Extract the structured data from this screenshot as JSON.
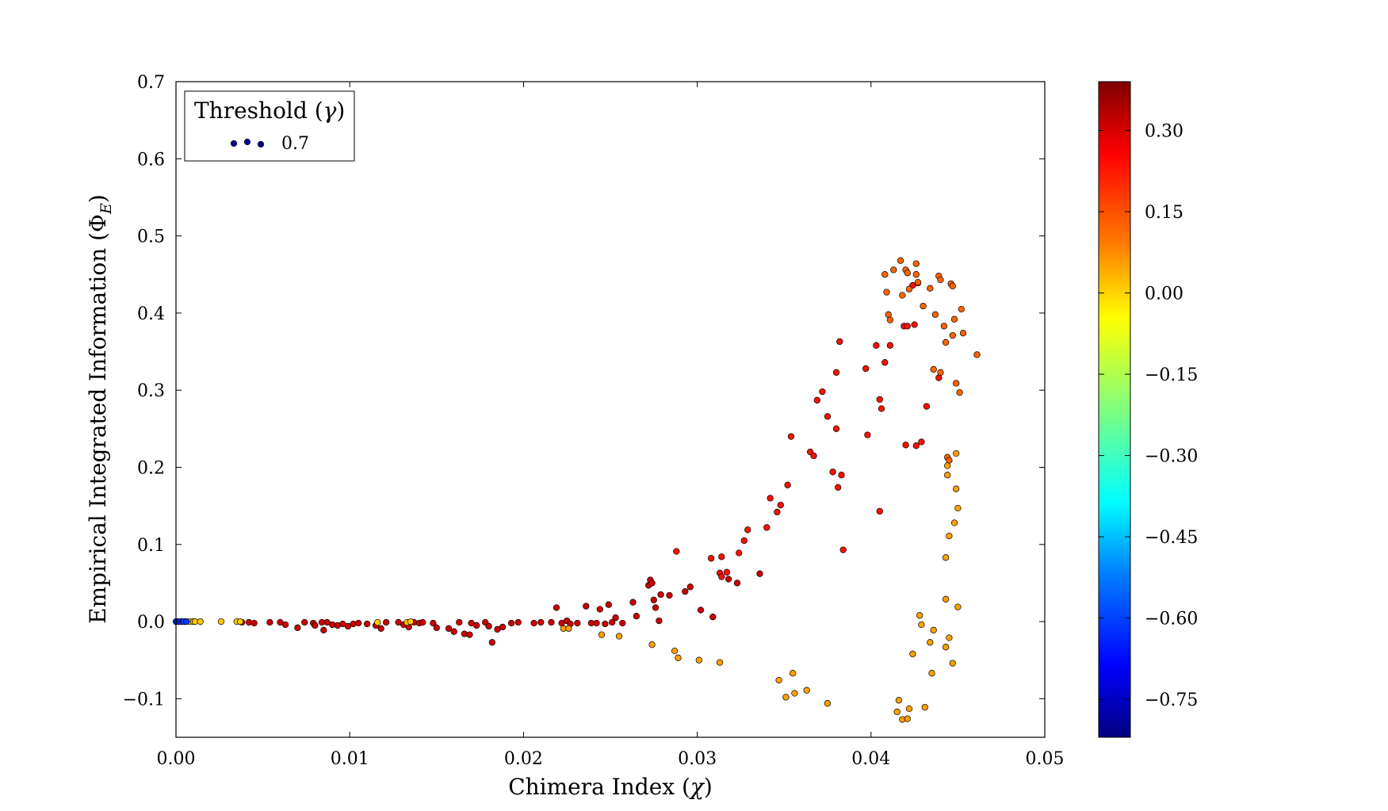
{
  "chart_data": {
    "type": "scatter",
    "title": "",
    "xlabel": "Chimera Index (χ)",
    "ylabel": "Empirical Integrated Information (Φ_E)",
    "xlim": [
      0.0,
      0.05
    ],
    "ylim": [
      -0.15,
      0.7
    ],
    "x_ticks": [
      "0.00",
      "0.01",
      "0.02",
      "0.03",
      "0.04",
      "0.05"
    ],
    "x_tick_values": [
      0.0,
      0.01,
      0.02,
      0.03,
      0.04,
      0.05
    ],
    "y_ticks": [
      "−0.1",
      "0.0",
      "0.1",
      "0.2",
      "0.3",
      "0.4",
      "0.5",
      "0.6",
      "0.7"
    ],
    "y_tick_values": [
      -0.1,
      0.0,
      0.1,
      0.2,
      0.3,
      0.4,
      0.5,
      0.6,
      0.7
    ],
    "grid": false,
    "legend": {
      "title": "Threshold (γ)",
      "placement": "top-left",
      "entries": [
        {
          "label": "0.7",
          "color": "#00008f"
        }
      ]
    },
    "colorbar": {
      "colormap": "jet",
      "range": [
        -0.82,
        0.39
      ],
      "ticks": [
        "0.30",
        "0.15",
        "0.00",
        "−0.15",
        "−0.30",
        "−0.45",
        "−0.60",
        "−0.75"
      ],
      "tick_values": [
        0.3,
        0.15,
        0.0,
        -0.15,
        -0.3,
        -0.45,
        -0.6,
        -0.75
      ]
    },
    "series": [
      {
        "color_group": "red (~0.30)",
        "color_value": 0.3,
        "points": [
          [
            0.0038,
            -0.001
          ],
          [
            0.0042,
            -0.001
          ],
          [
            0.0045,
            -0.002
          ],
          [
            0.0054,
            -0.001
          ],
          [
            0.006,
            -0.001
          ],
          [
            0.0063,
            -0.004
          ],
          [
            0.007,
            -0.008
          ],
          [
            0.0074,
            -0.001
          ],
          [
            0.0079,
            -0.002
          ],
          [
            0.008,
            -0.005
          ],
          [
            0.0084,
            -0.001
          ],
          [
            0.0085,
            -0.011
          ],
          [
            0.0087,
            -0.001
          ],
          [
            0.009,
            -0.004
          ],
          [
            0.0093,
            -0.005
          ],
          [
            0.0096,
            -0.003
          ],
          [
            0.0099,
            -0.006
          ],
          [
            0.0102,
            -0.003
          ],
          [
            0.0105,
            -0.002
          ],
          [
            0.011,
            -0.003
          ],
          [
            0.0115,
            -0.005
          ],
          [
            0.0118,
            -0.009
          ],
          [
            0.0121,
            -0.001
          ],
          [
            0.0128,
            -0.001
          ],
          [
            0.0131,
            -0.004
          ],
          [
            0.0134,
            -0.007
          ],
          [
            0.0137,
            -0.001
          ],
          [
            0.014,
            -0.002
          ],
          [
            0.0142,
            -0.001
          ],
          [
            0.0148,
            -0.002
          ],
          [
            0.015,
            -0.008
          ],
          [
            0.0157,
            -0.009
          ],
          [
            0.016,
            -0.013
          ],
          [
            0.0163,
            -0.001
          ],
          [
            0.0166,
            -0.016
          ],
          [
            0.0169,
            -0.017
          ],
          [
            0.017,
            -0.002
          ],
          [
            0.0173,
            -0.005
          ],
          [
            0.0178,
            -0.001
          ],
          [
            0.018,
            -0.006
          ],
          [
            0.0182,
            -0.027
          ],
          [
            0.0185,
            -0.01
          ],
          [
            0.0188,
            -0.007
          ],
          [
            0.0193,
            -0.002
          ],
          [
            0.0197,
            -0.001
          ],
          [
            0.0206,
            -0.002
          ],
          [
            0.021,
            -0.001
          ],
          [
            0.0216,
            -0.001
          ],
          [
            0.0219,
            0.018
          ],
          [
            0.0222,
            -0.002
          ],
          [
            0.0225,
            0.001
          ],
          [
            0.0227,
            -0.003
          ],
          [
            0.0231,
            -0.002
          ],
          [
            0.0236,
            0.02
          ],
          [
            0.0239,
            -0.002
          ],
          [
            0.0242,
            -0.002
          ],
          [
            0.0244,
            0.016
          ],
          [
            0.0247,
            -0.003
          ],
          [
            0.0249,
            0.022
          ],
          [
            0.0251,
            -0.001
          ],
          [
            0.0253,
            0.005
          ],
          [
            0.0257,
            -0.002
          ],
          [
            0.0263,
            0.025
          ],
          [
            0.0265,
            0.007
          ],
          [
            0.0272,
            0.047
          ],
          [
            0.0273,
            0.054
          ],
          [
            0.0274,
            0.05
          ],
          [
            0.0275,
            0.028
          ],
          [
            0.0276,
            0.018
          ],
          [
            0.0278,
            0.001
          ],
          [
            0.0279,
            0.035
          ],
          [
            0.0284,
            0.034
          ],
          [
            0.0293,
            0.039
          ],
          [
            0.0296,
            0.045
          ],
          [
            0.0302,
            0.015
          ],
          [
            0.0309,
            0.006
          ],
          [
            0.0318,
            0.055
          ],
          [
            0.0323,
            0.05
          ],
          [
            0.0336,
            0.062
          ]
        ]
      },
      {
        "color_group": "orange-red (~0.22)",
        "color_value": 0.22,
        "points": [
          [
            0.0288,
            0.091
          ],
          [
            0.0308,
            0.082
          ],
          [
            0.0313,
            0.063
          ],
          [
            0.0314,
            0.084
          ],
          [
            0.0314,
            0.058
          ],
          [
            0.0317,
            0.064
          ],
          [
            0.0324,
            0.089
          ],
          [
            0.0327,
            0.105
          ],
          [
            0.0329,
            0.119
          ],
          [
            0.034,
            0.122
          ],
          [
            0.0342,
            0.16
          ],
          [
            0.0346,
            0.142
          ],
          [
            0.0348,
            0.151
          ],
          [
            0.0352,
            0.177
          ],
          [
            0.0354,
            0.24
          ],
          [
            0.0365,
            0.22
          ],
          [
            0.0367,
            0.215
          ],
          [
            0.0369,
            0.287
          ],
          [
            0.0372,
            0.298
          ],
          [
            0.0375,
            0.266
          ],
          [
            0.0378,
            0.194
          ],
          [
            0.038,
            0.323
          ],
          [
            0.038,
            0.25
          ],
          [
            0.0381,
            0.174
          ],
          [
            0.0382,
            0.363
          ],
          [
            0.0383,
            0.19
          ],
          [
            0.0384,
            0.093
          ],
          [
            0.0397,
            0.328
          ],
          [
            0.0398,
            0.242
          ],
          [
            0.0403,
            0.358
          ],
          [
            0.0405,
            0.143
          ],
          [
            0.0405,
            0.288
          ],
          [
            0.0406,
            0.276
          ],
          [
            0.0408,
            0.336
          ],
          [
            0.0411,
            0.358
          ],
          [
            0.0419,
            0.383
          ],
          [
            0.042,
            0.229
          ],
          [
            0.0421,
            0.383
          ],
          [
            0.0424,
            0.436
          ],
          [
            0.0425,
            0.385
          ],
          [
            0.0426,
            0.228
          ],
          [
            0.0427,
            0.439
          ],
          [
            0.0429,
            0.233
          ],
          [
            0.0432,
            0.279
          ],
          [
            0.0439,
            0.316
          ]
        ]
      },
      {
        "color_group": "orange (~0.12)",
        "color_value": 0.12,
        "points": [
          [
            0.0408,
            0.45
          ],
          [
            0.0409,
            0.427
          ],
          [
            0.041,
            0.398
          ],
          [
            0.0411,
            0.391
          ],
          [
            0.0413,
            0.456
          ],
          [
            0.0417,
            0.468
          ],
          [
            0.0418,
            0.423
          ],
          [
            0.042,
            0.456
          ],
          [
            0.0421,
            0.452
          ],
          [
            0.0422,
            0.431
          ],
          [
            0.0426,
            0.464
          ],
          [
            0.0426,
            0.45
          ],
          [
            0.0427,
            0.44
          ],
          [
            0.043,
            0.409
          ],
          [
            0.0434,
            0.432
          ],
          [
            0.0436,
            0.327
          ],
          [
            0.0437,
            0.398
          ],
          [
            0.0439,
            0.448
          ],
          [
            0.044,
            0.443
          ],
          [
            0.044,
            0.323
          ],
          [
            0.0442,
            0.383
          ],
          [
            0.0443,
            0.362
          ],
          [
            0.0444,
            0.213
          ],
          [
            0.0445,
            0.209
          ],
          [
            0.0446,
            0.438
          ],
          [
            0.0447,
            0.371
          ],
          [
            0.0447,
            0.435
          ],
          [
            0.0448,
            0.392
          ],
          [
            0.0449,
            0.309
          ],
          [
            0.0451,
            0.297
          ],
          [
            0.0452,
            0.405
          ],
          [
            0.0453,
            0.374
          ],
          [
            0.0461,
            0.346
          ]
        ]
      },
      {
        "color_group": "yellow-orange (~0.05)",
        "color_value": 0.05,
        "points": [
          [
            0.0223,
            -0.009
          ],
          [
            0.0226,
            -0.009
          ],
          [
            0.0245,
            -0.017
          ],
          [
            0.0255,
            -0.019
          ],
          [
            0.0274,
            -0.03
          ],
          [
            0.0287,
            -0.038
          ],
          [
            0.0289,
            -0.047
          ],
          [
            0.0301,
            -0.05
          ],
          [
            0.0313,
            -0.053
          ],
          [
            0.0347,
            -0.076
          ],
          [
            0.0351,
            -0.098
          ],
          [
            0.0355,
            -0.067
          ],
          [
            0.0356,
            -0.093
          ],
          [
            0.0363,
            -0.089
          ],
          [
            0.0375,
            -0.106
          ],
          [
            0.0415,
            -0.117
          ],
          [
            0.0416,
            -0.102
          ],
          [
            0.0418,
            -0.127
          ],
          [
            0.0421,
            -0.126
          ],
          [
            0.0422,
            -0.113
          ],
          [
            0.0424,
            -0.042
          ],
          [
            0.0428,
            0.008
          ],
          [
            0.0429,
            -0.004
          ],
          [
            0.0431,
            -0.111
          ],
          [
            0.0434,
            -0.027
          ],
          [
            0.0435,
            -0.067
          ],
          [
            0.0436,
            -0.011
          ],
          [
            0.0443,
            -0.033
          ],
          [
            0.0443,
            0.029
          ],
          [
            0.0443,
            0.083
          ],
          [
            0.0444,
            0.19
          ],
          [
            0.0444,
            0.202
          ],
          [
            0.0445,
            -0.021
          ],
          [
            0.0445,
            0.111
          ],
          [
            0.0447,
            -0.054
          ],
          [
            0.0448,
            0.128
          ],
          [
            0.0449,
            0.218
          ],
          [
            0.0449,
            0.172
          ],
          [
            0.045,
            0.147
          ],
          [
            0.045,
            0.019
          ]
        ]
      },
      {
        "color_group": "yellow (~0.00)",
        "color_value": 0.0,
        "points": [
          [
            0.0003,
            0.0
          ],
          [
            0.0005,
            0.0
          ],
          [
            0.0008,
            0.0
          ],
          [
            0.001,
            0.0
          ],
          [
            0.0011,
            0.0
          ],
          [
            0.0014,
            0.0
          ],
          [
            0.0026,
            0.0
          ],
          [
            0.0035,
            0.0
          ],
          [
            0.0037,
            0.0
          ],
          [
            0.0116,
            -0.001
          ],
          [
            0.0133,
            -0.001
          ],
          [
            0.0135,
            0.0
          ]
        ]
      },
      {
        "color_group": "blue (~-0.60)",
        "color_value": -0.6,
        "points": [
          [
            0.0,
            0.0
          ],
          [
            0.0001,
            0.0
          ],
          [
            0.0002,
            0.0
          ],
          [
            0.0004,
            0.0
          ],
          [
            0.0006,
            0.0
          ]
        ]
      }
    ]
  }
}
